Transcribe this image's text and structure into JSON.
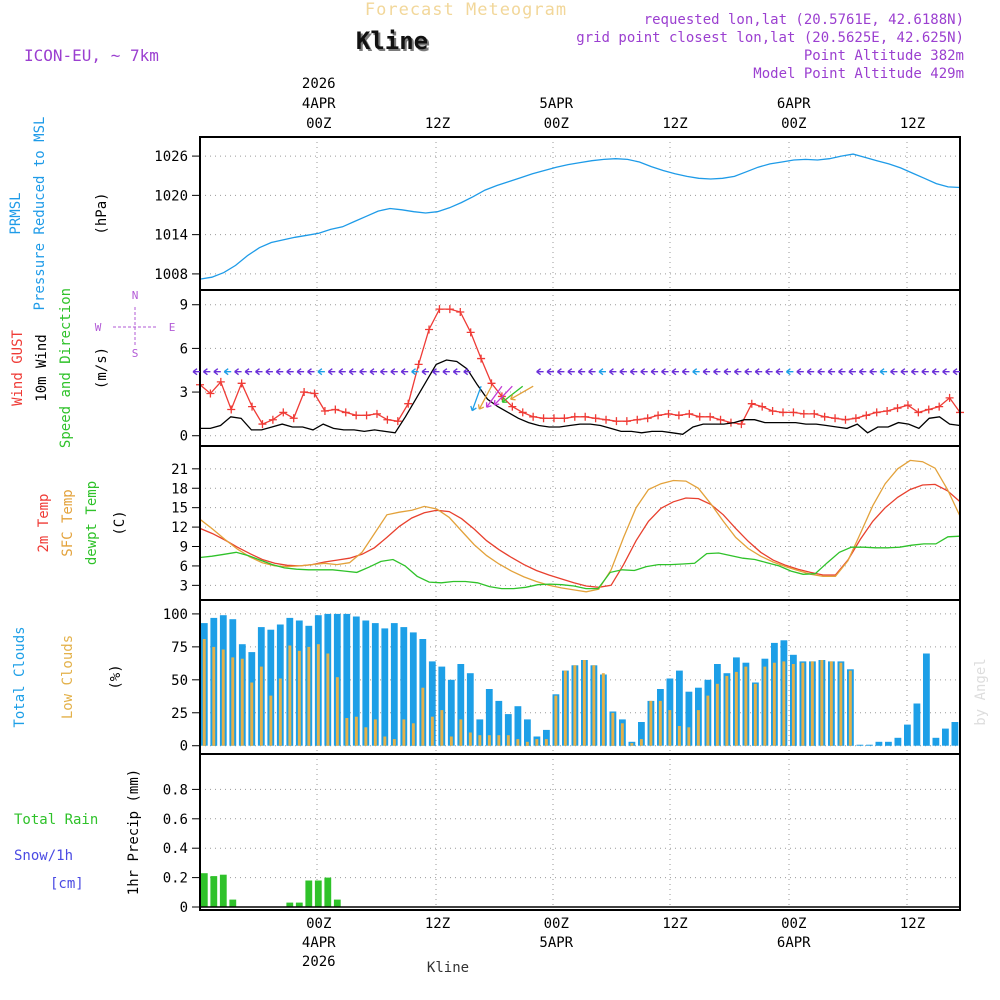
{
  "chart_data": {
    "type": "meteogram",
    "title": "Forecast Meteogram",
    "location": "Kline",
    "model": "ICON-EU, ~ 7km",
    "footer": "Kline",
    "watermark": "by Angel",
    "info_lines": [
      "requested lon,lat (20.5761E, 42.6188N)",
      "grid point closest lon,lat (20.5625E, 42.625N)",
      "Point Altitude 382m",
      "Model Point Altitude 429m"
    ],
    "time_axis": {
      "start_hour": -10,
      "end_hour": 54,
      "top_labels": [
        {
          "hour": 0,
          "lines": [
            "2026",
            "4APR",
            "00Z"
          ]
        },
        {
          "hour": 10,
          "lines": [
            "12Z"
          ]
        },
        {
          "hour": 20,
          "lines": [
            "5APR",
            "00Z"
          ]
        },
        {
          "hour": 30,
          "lines": [
            "12Z"
          ]
        },
        {
          "hour": 40,
          "lines": [
            "6APR",
            "00Z"
          ]
        },
        {
          "hour": 50,
          "lines": [
            "12Z"
          ]
        }
      ],
      "bottom_labels": [
        {
          "hour": 0,
          "lines": [
            "00Z",
            "4APR",
            "2026"
          ]
        },
        {
          "hour": 10,
          "lines": [
            "12Z"
          ]
        },
        {
          "hour": 20,
          "lines": [
            "00Z",
            "5APR"
          ]
        },
        {
          "hour": 30,
          "lines": [
            "12Z"
          ]
        },
        {
          "hour": 40,
          "lines": [
            "00Z",
            "6APR"
          ]
        },
        {
          "hour": 50,
          "lines": [
            "12Z"
          ]
        }
      ]
    },
    "panels": [
      {
        "id": "pressure",
        "type": "line",
        "labels": [
          "PRMSL",
          "Pressure Reduced to MSL"
        ],
        "unit": "(hPa)",
        "ylim": [
          1006,
          1028
        ],
        "yticks": [
          1008,
          1014,
          1020,
          1026
        ],
        "series": [
          {
            "name": "PRMSL",
            "color": "#1e9be8",
            "values": [
              1007.2,
              1007.5,
              1008.2,
              1009.3,
              1010.8,
              1012.0,
              1012.8,
              1013.2,
              1013.6,
              1013.9,
              1014.2,
              1014.8,
              1015.2,
              1016.0,
              1016.8,
              1017.6,
              1018.0,
              1017.8,
              1017.5,
              1017.3,
              1017.5,
              1018.1,
              1018.9,
              1019.8,
              1020.8,
              1021.5,
              1022.1,
              1022.7,
              1023.3,
              1023.8,
              1024.3,
              1024.7,
              1025.0,
              1025.3,
              1025.5,
              1025.6,
              1025.5,
              1025.1,
              1024.4,
              1023.8,
              1023.3,
              1022.9,
              1022.6,
              1022.5,
              1022.6,
              1022.9,
              1023.6,
              1024.3,
              1024.8,
              1025.1,
              1025.4,
              1025.5,
              1025.4,
              1025.6,
              1026.0,
              1026.3,
              1025.8,
              1025.3,
              1024.8,
              1024.2,
              1023.4,
              1022.6,
              1021.8,
              1021.3,
              1021.2
            ]
          }
        ]
      },
      {
        "id": "wind",
        "type": "line",
        "labels": [
          "Wind GUST",
          "10m Wind",
          "Speed and Direction"
        ],
        "unit": "(m/s)",
        "ylim": [
          -0.5,
          9.6
        ],
        "yticks": [
          0,
          3,
          6,
          9
        ],
        "compass": [
          "N",
          "E",
          "S",
          "W"
        ],
        "series": [
          {
            "name": "Wind GUST",
            "color": "#ef3b36",
            "marker": "plus",
            "values": [
              3.5,
              2.9,
              3.7,
              1.8,
              3.6,
              2.0,
              0.8,
              1.1,
              1.6,
              1.2,
              3.0,
              2.9,
              1.7,
              1.8,
              1.6,
              1.4,
              1.4,
              1.5,
              1.1,
              1.0,
              2.2,
              4.9,
              7.3,
              8.7,
              8.7,
              8.5,
              7.1,
              5.3,
              3.6,
              2.7,
              2.0,
              1.6,
              1.3,
              1.2,
              1.2,
              1.2,
              1.3,
              1.3,
              1.2,
              1.1,
              1.0,
              1.0,
              1.1,
              1.2,
              1.4,
              1.5,
              1.4,
              1.5,
              1.3,
              1.3,
              1.1,
              0.9,
              0.8,
              2.2,
              2.0,
              1.7,
              1.6,
              1.6,
              1.5,
              1.5,
              1.3,
              1.2,
              1.1,
              1.2,
              1.4,
              1.6,
              1.7,
              1.9,
              2.1,
              1.6,
              1.8,
              2.0,
              2.6,
              1.6
            ]
          },
          {
            "name": "10m Wind",
            "color": "#000000",
            "values": [
              0.5,
              0.5,
              0.7,
              1.3,
              1.2,
              0.4,
              0.4,
              0.6,
              0.8,
              0.6,
              0.6,
              0.4,
              0.8,
              0.5,
              0.4,
              0.4,
              0.3,
              0.4,
              0.3,
              0.2,
              1.3,
              2.5,
              3.7,
              4.9,
              5.2,
              5.1,
              4.6,
              3.5,
              2.5,
              2.0,
              1.6,
              1.2,
              0.9,
              0.7,
              0.6,
              0.6,
              0.7,
              0.8,
              0.8,
              0.7,
              0.5,
              0.3,
              0.3,
              0.2,
              0.3,
              0.3,
              0.2,
              0.1,
              0.6,
              0.8,
              0.8,
              0.8,
              0.9,
              1.1,
              1.1,
              0.9,
              0.9,
              0.9,
              0.9,
              0.8,
              0.8,
              0.7,
              0.6,
              0.5,
              0.8,
              0.2,
              0.6,
              0.6,
              0.9,
              0.8,
              0.5,
              1.2,
              1.3,
              0.8,
              0.7
            ]
          }
        ]
      },
      {
        "id": "temperature",
        "type": "line",
        "labels": [
          "2m Temp",
          "SFC Temp",
          "dewpt Temp"
        ],
        "unit": "(C)",
        "ylim": [
          1.2,
          23.6
        ],
        "yticks": [
          3,
          6,
          9,
          12,
          15,
          18,
          21
        ],
        "series": [
          {
            "name": "2m Temp",
            "color": "#e8402e",
            "values": [
              11.8,
              11.0,
              10.0,
              8.9,
              7.9,
              7.0,
              6.4,
              6.1,
              6.0,
              6.2,
              6.6,
              6.9,
              7.2,
              7.8,
              8.8,
              10.4,
              12.1,
              13.4,
              14.2,
              14.6,
              14.4,
              13.3,
              11.7,
              9.9,
              8.5,
              7.3,
              6.2,
              5.3,
              4.6,
              4.0,
              3.4,
              2.9,
              2.7,
              3.0,
              6.2,
              9.9,
              12.9,
              14.9,
              15.9,
              16.5,
              16.4,
              15.5,
              13.9,
              11.8,
              9.8,
              8.1,
              6.9,
              6.1,
              5.5,
              5.0,
              4.6,
              4.6,
              6.9,
              10.1,
              12.9,
              15.0,
              16.6,
              17.8,
              18.5,
              18.6,
              17.6,
              15.9
            ]
          },
          {
            "name": "SFC Temp",
            "color": "#e3a23b",
            "values": [
              13.2,
              11.7,
              10.1,
              8.6,
              7.4,
              6.5,
              6.0,
              5.9,
              6.0,
              6.2,
              6.4,
              6.2,
              6.5,
              8.1,
              11.0,
              13.9,
              14.3,
              14.6,
              15.2,
              14.8,
              13.5,
              11.4,
              9.3,
              7.6,
              6.3,
              5.2,
              4.3,
              3.6,
              3.0,
              2.6,
              2.3,
              2.0,
              2.4,
              5.4,
              10.4,
              15.0,
              17.8,
              18.7,
              19.2,
              19.1,
              18.0,
              15.6,
              12.9,
              10.4,
              8.7,
              7.5,
              6.6,
              5.9,
              5.3,
              4.7,
              4.4,
              4.4,
              6.8,
              11.0,
              15.3,
              18.7,
              21.0,
              22.3,
              22.1,
              21.1,
              17.8,
              13.7
            ]
          },
          {
            "name": "dewpt Temp",
            "color": "#2fc22a",
            "values": [
              7.3,
              7.5,
              7.8,
              8.1,
              7.6,
              6.9,
              6.2,
              5.7,
              5.5,
              5.4,
              5.4,
              5.4,
              5.2,
              5.0,
              5.8,
              6.7,
              7.0,
              6.0,
              4.4,
              3.5,
              3.4,
              3.6,
              3.6,
              3.4,
              2.8,
              2.5,
              2.5,
              2.7,
              3.1,
              3.2,
              3.1,
              2.9,
              2.5,
              2.5,
              5.0,
              5.4,
              5.3,
              5.9,
              6.2,
              6.2,
              6.3,
              6.4,
              7.9,
              8.0,
              7.6,
              7.2,
              7.0,
              6.5,
              6.0,
              5.2,
              4.7,
              4.8,
              6.5,
              8.1,
              8.9,
              8.9,
              8.8,
              8.8,
              8.9,
              9.2,
              9.4,
              9.4,
              10.5,
              10.6
            ]
          }
        ]
      },
      {
        "id": "clouds",
        "type": "bar",
        "labels": [
          "Total Clouds",
          "Low Clouds"
        ],
        "unit": "(%)",
        "ylim": [
          -4,
          106
        ],
        "yticks": [
          0,
          25,
          50,
          75,
          100
        ],
        "series": [
          {
            "name": "Total Clouds",
            "color": "#1d9fe7",
            "values": [
              93,
              97,
              99,
              96,
              77,
              71,
              90,
              88,
              92,
              97,
              95,
              91,
              99,
              100,
              100,
              100,
              98,
              95,
              93,
              89,
              93,
              90,
              86,
              81,
              64,
              60,
              50,
              62,
              55,
              20,
              43,
              34,
              24,
              30,
              20,
              7,
              12,
              39,
              57,
              61,
              65,
              61,
              54,
              26,
              20,
              3,
              18,
              34,
              43,
              51,
              57,
              41,
              44,
              50,
              62,
              55,
              67,
              63,
              48,
              66,
              78,
              80,
              69,
              64,
              64,
              65,
              64,
              64,
              58,
              0,
              0,
              3,
              3,
              6,
              16,
              32,
              70,
              6,
              13,
              18
            ]
          },
          {
            "name": "Low Clouds",
            "color": "#e3b14a",
            "values": [
              81,
              75,
              73,
              67,
              66,
              48,
              60,
              38,
              51,
              76,
              72,
              75,
              77,
              70,
              52,
              21,
              22,
              14,
              20,
              7,
              5,
              20,
              17,
              44,
              22,
              27,
              7,
              20,
              10,
              8,
              8,
              8,
              8,
              5,
              3,
              5,
              5,
              38,
              57,
              61,
              65,
              61,
              55,
              25,
              17,
              2,
              5,
              34,
              34,
              27,
              15,
              14,
              27,
              38,
              47,
              53,
              56,
              60,
              47,
              60,
              63,
              64,
              62,
              63,
              64,
              65,
              64,
              63,
              57,
              0,
              0,
              0,
              0,
              0,
              0,
              0,
              0,
              0,
              0,
              0
            ]
          }
        ]
      },
      {
        "id": "precip",
        "type": "bar",
        "labels": [
          "Total Rain",
          "Snow/1h",
          "[cm]"
        ],
        "unit": "1hr Precip (mm)",
        "ylim": [
          0,
          1.0
        ],
        "yticks": [
          0,
          0.2,
          0.4,
          0.6,
          0.8
        ],
        "series": [
          {
            "name": "Total Rain",
            "color": "#2fc22a",
            "values": [
              0.23,
              0.21,
              0.22,
              0.05,
              0,
              0,
              0,
              0,
              0,
              0.03,
              0.03,
              0.18,
              0.18,
              0.2,
              0.05,
              0,
              0,
              0,
              0,
              0,
              0,
              0,
              0,
              0,
              0,
              0,
              0,
              0,
              0,
              0,
              0,
              0,
              0,
              0,
              0,
              0,
              0,
              0,
              0,
              0,
              0,
              0,
              0,
              0,
              0,
              0,
              0,
              0,
              0,
              0,
              0,
              0,
              0,
              0,
              0,
              0,
              0,
              0,
              0,
              0,
              0,
              0,
              0,
              0,
              0,
              0,
              0,
              0,
              0,
              0,
              0,
              0,
              0,
              0,
              0,
              0,
              0,
              0,
              0,
              0
            ]
          }
        ]
      }
    ]
  }
}
